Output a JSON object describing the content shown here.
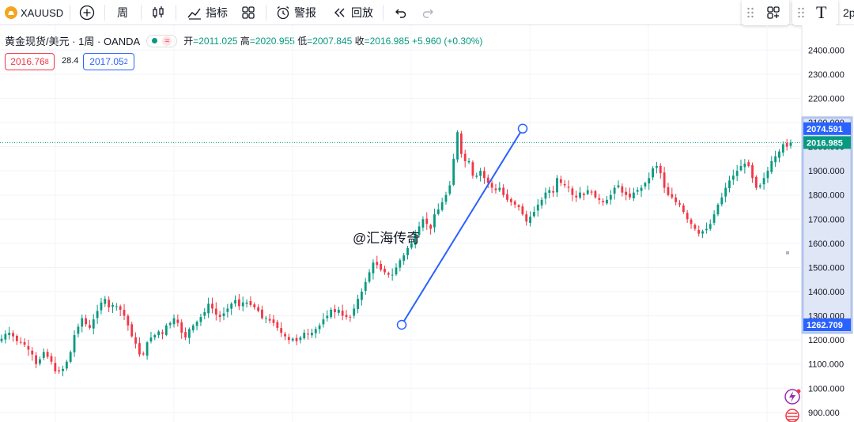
{
  "toolbar": {
    "symbol": "XAUUSD",
    "interval": "周",
    "indicators": "指标",
    "alert": "警报",
    "replay": "回放",
    "text_tool": "T",
    "overflow": "2p"
  },
  "legend": {
    "title": "黄金现货/美元 · 1周 · OANDA",
    "open_label": "开",
    "open": "=2011.025",
    "high_label": "高",
    "high": "=2020.955",
    "low_label": "低",
    "low": "=2007.845",
    "close_label": "收",
    "close": "=2016.985",
    "change": "+5.960 (+0.30%)",
    "wave_icon": "≈"
  },
  "trade": {
    "sell_main": "2016.76",
    "sell_small": "8",
    "spread": "28.4",
    "buy_main": "2017.05",
    "buy_small": "2"
  },
  "watermark": "@汇海传奇",
  "colors": {
    "up": "#089981",
    "down": "#f23645",
    "line": "#2962ff",
    "highlight": "#b2c4ef"
  },
  "chart_data": {
    "type": "candlestick",
    "symbol": "XAUUSD",
    "interval": "1W",
    "ylim": [
      880,
      2450
    ],
    "yticks": [
      "2400.000",
      "2300.000",
      "2200.000",
      "2100.000",
      "2000.000",
      "1900.000",
      "1800.000",
      "1700.000",
      "1600.000",
      "1500.000",
      "1400.000",
      "1300.000",
      "1200.000",
      "1100.000",
      "1000.000",
      "900.000"
    ],
    "ytick_values": [
      2400,
      2300,
      2200,
      2100,
      2000,
      1900,
      1800,
      1700,
      1600,
      1500,
      1400,
      1300,
      1200,
      1100,
      1000,
      900
    ],
    "closes": [
      1205,
      1225,
      1230,
      1215,
      1195,
      1190,
      1180,
      1160,
      1140,
      1100,
      1120,
      1150,
      1130,
      1110,
      1070,
      1070,
      1080,
      1110,
      1150,
      1220,
      1255,
      1290,
      1265,
      1250,
      1285,
      1320,
      1355,
      1370,
      1335,
      1345,
      1340,
      1325,
      1300,
      1260,
      1215,
      1185,
      1140,
      1140,
      1190,
      1210,
      1220,
      1235,
      1225,
      1260,
      1270,
      1290,
      1270,
      1230,
      1210,
      1245,
      1260,
      1275,
      1295,
      1315,
      1350,
      1330,
      1305,
      1295,
      1310,
      1330,
      1350,
      1365,
      1340,
      1355,
      1355,
      1345,
      1335,
      1320,
      1290,
      1290,
      1280,
      1270,
      1250,
      1230,
      1215,
      1200,
      1205,
      1195,
      1210,
      1230,
      1225,
      1230,
      1245,
      1260,
      1285,
      1300,
      1325,
      1315,
      1325,
      1300,
      1295,
      1295,
      1330,
      1370,
      1400,
      1440,
      1480,
      1520,
      1510,
      1490,
      1480,
      1470,
      1470,
      1500,
      1530,
      1550,
      1580,
      1600,
      1640,
      1670,
      1700,
      1680,
      1660,
      1720,
      1740,
      1770,
      1800,
      1840,
      1950,
      2060,
      1970,
      1940,
      1940,
      1880,
      1880,
      1900,
      1870,
      1850,
      1830,
      1820,
      1830,
      1800,
      1780,
      1770,
      1760,
      1750,
      1720,
      1690,
      1710,
      1730,
      1760,
      1780,
      1810,
      1820,
      1810,
      1870,
      1850,
      1840,
      1830,
      1800,
      1790,
      1810,
      1800,
      1820,
      1810,
      1790,
      1780,
      1770,
      1780,
      1800,
      1830,
      1840,
      1810,
      1800,
      1790,
      1810,
      1820,
      1830,
      1850,
      1870,
      1910,
      1920,
      1890,
      1830,
      1800,
      1790,
      1770,
      1760,
      1730,
      1700,
      1680,
      1660,
      1640,
      1650,
      1660,
      1680,
      1720,
      1760,
      1790,
      1830,
      1860,
      1880,
      1900,
      1920,
      1930,
      1920,
      1870,
      1830,
      1840,
      1870,
      1900,
      1940,
      1960,
      1980,
      2010,
      2000,
      2016.985
    ],
    "price_line": 2016.985,
    "trend_line": {
      "from": 1262.709,
      "to": 2074.591
    },
    "axis_tags": {
      "trend_high": "2074.591",
      "last_price": "2016.985",
      "trend_low": "1262.709"
    }
  }
}
